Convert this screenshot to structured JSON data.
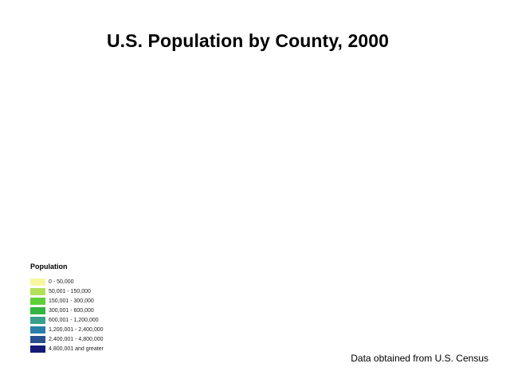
{
  "title": "U.S. Population by County, 2000",
  "legend": {
    "title": "Population",
    "items": [
      {
        "label": "0 - 50,000",
        "color": "#f7f7a1"
      },
      {
        "label": "50,001 - 150,000",
        "color": "#b3e05b"
      },
      {
        "label": "150,001 - 300,000",
        "color": "#5ecf39"
      },
      {
        "label": "300,001 - 600,000",
        "color": "#34b541"
      },
      {
        "label": "600,001 - 1,200,000",
        "color": "#36a08a"
      },
      {
        "label": "1,200,001 - 2,400,000",
        "color": "#2a7fa8"
      },
      {
        "label": "2,400,001 - 4,800,000",
        "color": "#2a4f8f"
      },
      {
        "label": "4,800,001 and greater",
        "color": "#151a75"
      }
    ]
  },
  "source": "Data obtained from U.S. Census"
}
